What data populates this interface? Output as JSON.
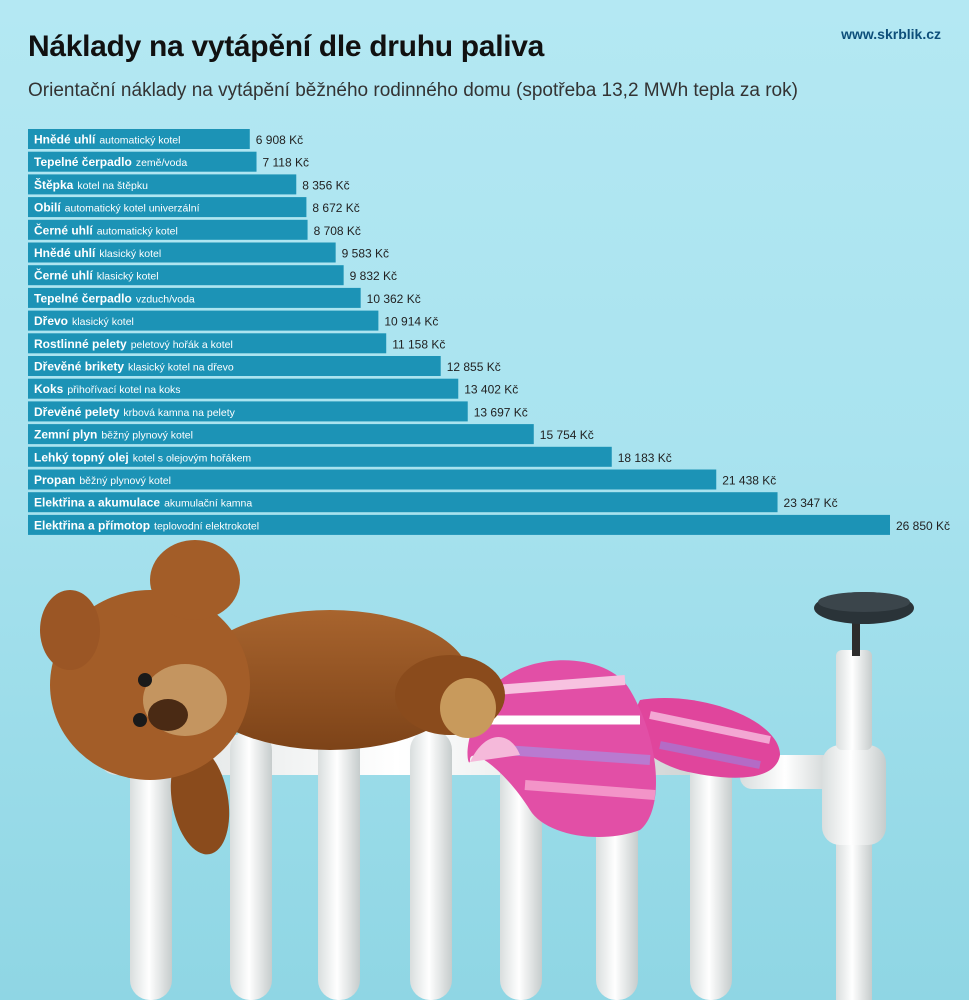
{
  "header": {
    "title": "Náklady na vytápění dle druhu paliva",
    "subtitle": "Orientační náklady na vytápění běžného rodinného domu (spotřeba 13,2 MWh tepla za rok)",
    "brand": "www.skrblik.cz"
  },
  "colors": {
    "bar": "#1c93b6",
    "bar_text": "#ffffff",
    "value_text": "#222222",
    "background": "#b4e8f3"
  },
  "illustration": [
    "teddy-bear",
    "knitted-mittens",
    "radiator",
    "radiator-valve"
  ],
  "chart_data": {
    "type": "bar",
    "orientation": "horizontal",
    "title": "Náklady na vytápění dle druhu paliva",
    "subtitle": "Orientační náklady na vytápění běžného rodinného domu (spotřeba 13,2 MWh tepla za rok)",
    "unit": "Kč",
    "xlim": [
      0,
      26850
    ],
    "grid": false,
    "categories": [
      {
        "name": "Hnědé uhlí",
        "detail": "automatický kotel",
        "value": 6908,
        "label": "6 908 Kč"
      },
      {
        "name": "Tepelné čerpadlo",
        "detail": "země/voda",
        "value": 7118,
        "label": "7 118 Kč"
      },
      {
        "name": "Štěpka",
        "detail": "kotel na štěpku",
        "value": 8356,
        "label": "8 356 Kč"
      },
      {
        "name": "Obilí",
        "detail": "automatický kotel univerzální",
        "value": 8672,
        "label": "8 672 Kč"
      },
      {
        "name": "Černé uhlí",
        "detail": "automatický kotel",
        "value": 8708,
        "label": "8 708 Kč"
      },
      {
        "name": "Hnědé uhlí",
        "detail": "klasický kotel",
        "value": 9583,
        "label": "9 583 Kč"
      },
      {
        "name": "Černé uhlí",
        "detail": "klasický kotel",
        "value": 9832,
        "label": "9 832 Kč"
      },
      {
        "name": "Tepelné čerpadlo",
        "detail": "vzduch/voda",
        "value": 10362,
        "label": "10 362 Kč"
      },
      {
        "name": "Dřevo",
        "detail": "klasický kotel",
        "value": 10914,
        "label": "10 914 Kč"
      },
      {
        "name": "Rostlinné pelety",
        "detail": "peletový hořák a kotel",
        "value": 11158,
        "label": "11 158 Kč"
      },
      {
        "name": "Dřevěné brikety",
        "detail": "klasický kotel na dřevo",
        "value": 12855,
        "label": "12 855 Kč"
      },
      {
        "name": "Koks",
        "detail": "přihořívací kotel na koks",
        "value": 13402,
        "label": "13 402 Kč"
      },
      {
        "name": "Dřevěné pelety",
        "detail": "krbová kamna na pelety",
        "value": 13697,
        "label": "13 697 Kč"
      },
      {
        "name": "Zemní plyn",
        "detail": "běžný plynový kotel",
        "value": 15754,
        "label": "15 754 Kč"
      },
      {
        "name": "Lehký topný olej",
        "detail": "kotel s olejovým hořákem",
        "value": 18183,
        "label": "18 183 Kč"
      },
      {
        "name": "Propan",
        "detail": "běžný plynový kotel",
        "value": 21438,
        "label": "21 438 Kč"
      },
      {
        "name": "Elektřina a akumulace",
        "detail": "akumulační kamna",
        "value": 23347,
        "label": "23 347 Kč"
      },
      {
        "name": "Elektřina a přímotop",
        "detail": "teplovodní elektrokotel",
        "value": 26850,
        "label": "26 850 Kč"
      }
    ]
  }
}
